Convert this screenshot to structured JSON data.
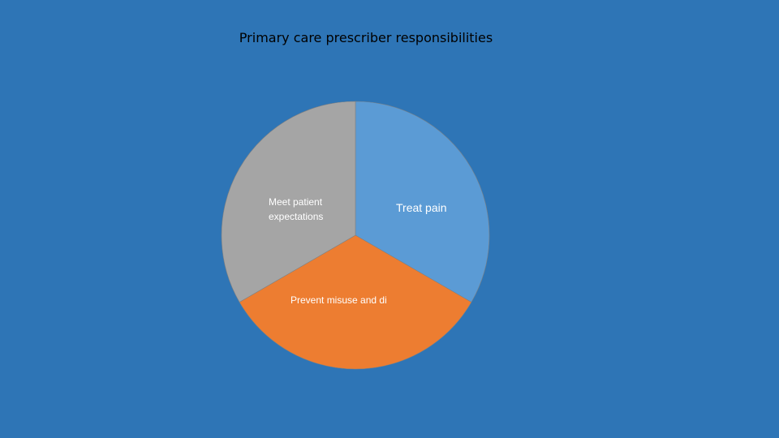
{
  "chart_data": {
    "type": "pie",
    "title": "Primary care prescriber responsibilities",
    "slices": [
      {
        "label": "Treat pain",
        "value": 1,
        "color": "#5B9BD5"
      },
      {
        "label": "Prevent misuse and di",
        "value": 1,
        "color": "#ED7D31"
      },
      {
        "label": "Meet patient expectations",
        "value": 1,
        "color": "#A5A5A5"
      }
    ],
    "start_angle": "12 o'clock",
    "direction": "clockwise",
    "legend": "none",
    "data_labels": "category names inside slices"
  },
  "colors": {
    "background": "#2E75B6",
    "slice_border": "#808080"
  }
}
